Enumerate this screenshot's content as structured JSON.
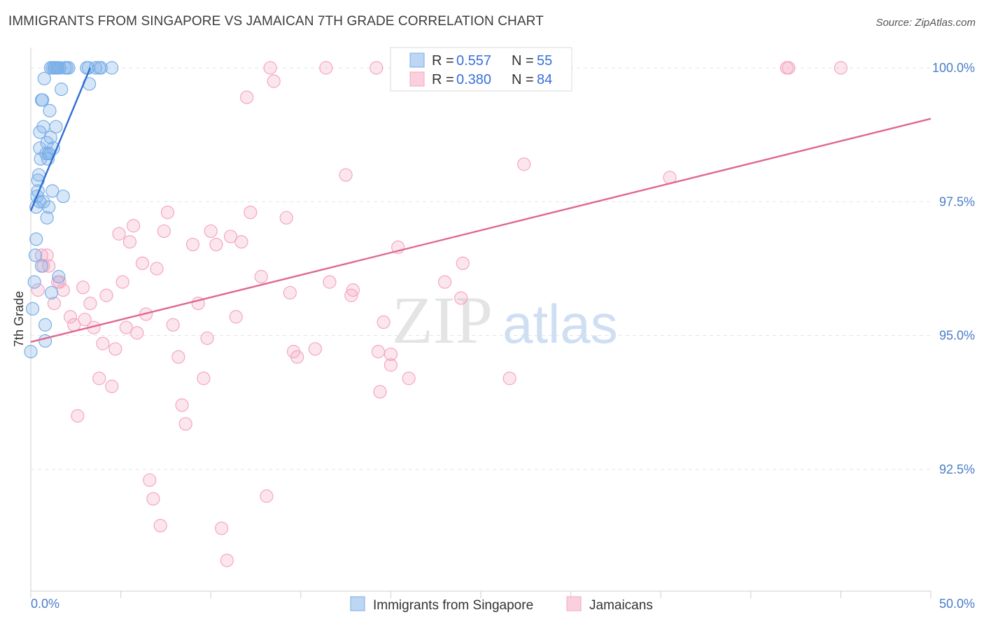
{
  "header": {
    "title": "IMMIGRANTS FROM SINGAPORE VS JAMAICAN 7TH GRADE CORRELATION CHART",
    "source": "Source: ZipAtlas.com"
  },
  "watermark": {
    "zip": "ZIP",
    "atlas": "atlas"
  },
  "colors": {
    "singapore": "#7aaee8",
    "singapore_line": "#2e6fd1",
    "jamaicans": "#f4a6c0",
    "jamaicans_line": "#e06890",
    "axis_text": "#4a7cc9"
  },
  "chart_data": {
    "type": "scatter",
    "title": "IMMIGRANTS FROM SINGAPORE VS JAMAICAN 7TH GRADE CORRELATION CHART",
    "xlabel": "",
    "ylabel": "7th Grade",
    "xlim": [
      0,
      50
    ],
    "ylim": [
      90.0,
      100.25
    ],
    "x_ticks": [
      "0.0%",
      "50.0%"
    ],
    "y_ticks": [
      {
        "value": 100.0,
        "label": "100.0%"
      },
      {
        "value": 97.5,
        "label": "97.5%"
      },
      {
        "value": 95.0,
        "label": "95.0%"
      },
      {
        "value": 92.5,
        "label": "92.5%"
      }
    ],
    "legend": {
      "position": "top-center",
      "entries": [
        {
          "series": "singapore",
          "r_label": "R =",
          "r": "0.557",
          "n_label": "N =",
          "n": "55"
        },
        {
          "series": "jamaicans",
          "r_label": "R =",
          "r": "0.380",
          "n_label": "N =",
          "n": "84"
        }
      ]
    },
    "series": [
      {
        "key": "singapore",
        "name": "Immigrants from Singapore",
        "trend": {
          "x": [
            0.0,
            3.3
          ],
          "y": [
            97.33,
            100.0
          ]
        },
        "points": [
          [
            0.0,
            94.7
          ],
          [
            0.1,
            95.5
          ],
          [
            0.2,
            96.0
          ],
          [
            0.25,
            96.5
          ],
          [
            0.3,
            96.8
          ],
          [
            0.3,
            97.4
          ],
          [
            0.35,
            97.6
          ],
          [
            0.4,
            97.7
          ],
          [
            0.4,
            97.9
          ],
          [
            0.45,
            98.0
          ],
          [
            0.5,
            97.5
          ],
          [
            0.5,
            98.5
          ],
          [
            0.5,
            98.8
          ],
          [
            0.55,
            98.3
          ],
          [
            0.6,
            96.3
          ],
          [
            0.65,
            99.4
          ],
          [
            0.7,
            97.5
          ],
          [
            0.7,
            98.9
          ],
          [
            0.75,
            99.8
          ],
          [
            0.8,
            95.2
          ],
          [
            0.8,
            94.9
          ],
          [
            0.85,
            98.4
          ],
          [
            0.9,
            97.2
          ],
          [
            0.9,
            98.6
          ],
          [
            0.95,
            98.3
          ],
          [
            1.0,
            97.4
          ],
          [
            1.0,
            98.4
          ],
          [
            1.05,
            99.2
          ],
          [
            1.1,
            98.7
          ],
          [
            1.1,
            100.0
          ],
          [
            1.15,
            95.8
          ],
          [
            1.2,
            97.7
          ],
          [
            1.2,
            100.0
          ],
          [
            1.25,
            98.5
          ],
          [
            1.3,
            100.0
          ],
          [
            1.35,
            100.0
          ],
          [
            1.4,
            98.9
          ],
          [
            1.45,
            100.0
          ],
          [
            1.5,
            100.0
          ],
          [
            1.55,
            96.1
          ],
          [
            1.6,
            100.0
          ],
          [
            1.7,
            99.6
          ],
          [
            1.8,
            97.6
          ],
          [
            1.9,
            100.0
          ],
          [
            2.0,
            100.0
          ],
          [
            2.1,
            100.0
          ],
          [
            3.1,
            100.0
          ],
          [
            3.2,
            100.0
          ],
          [
            3.25,
            99.7
          ],
          [
            3.6,
            100.0
          ],
          [
            3.8,
            100.0
          ],
          [
            3.9,
            100.0
          ],
          [
            4.5,
            100.0
          ],
          [
            0.6,
            99.4
          ],
          [
            1.0,
            98.4
          ]
        ]
      },
      {
        "key": "jamaicans",
        "name": "Jamaicans",
        "trend": {
          "x": [
            0.0,
            50.0
          ],
          "y": [
            94.88,
            99.05
          ]
        },
        "points": [
          [
            0.4,
            95.85
          ],
          [
            0.6,
            96.5
          ],
          [
            0.7,
            96.3
          ],
          [
            0.9,
            96.5
          ],
          [
            1.0,
            96.3
          ],
          [
            1.3,
            95.6
          ],
          [
            1.5,
            96.0
          ],
          [
            1.6,
            96.0
          ],
          [
            1.8,
            95.85
          ],
          [
            2.2,
            95.35
          ],
          [
            2.4,
            95.2
          ],
          [
            2.6,
            93.5
          ],
          [
            2.9,
            95.9
          ],
          [
            3.0,
            95.3
          ],
          [
            3.3,
            95.6
          ],
          [
            3.5,
            95.15
          ],
          [
            3.8,
            94.2
          ],
          [
            4.0,
            94.85
          ],
          [
            4.2,
            95.75
          ],
          [
            4.5,
            94.05
          ],
          [
            4.7,
            94.75
          ],
          [
            4.9,
            96.9
          ],
          [
            5.1,
            96.0
          ],
          [
            5.3,
            95.15
          ],
          [
            5.5,
            96.75
          ],
          [
            5.7,
            97.05
          ],
          [
            5.9,
            95.05
          ],
          [
            6.2,
            96.35
          ],
          [
            6.4,
            95.4
          ],
          [
            6.6,
            92.3
          ],
          [
            6.8,
            91.95
          ],
          [
            7.0,
            96.25
          ],
          [
            7.2,
            91.45
          ],
          [
            7.4,
            96.95
          ],
          [
            7.6,
            97.3
          ],
          [
            7.9,
            95.2
          ],
          [
            8.2,
            94.6
          ],
          [
            8.4,
            93.7
          ],
          [
            8.6,
            93.35
          ],
          [
            9.0,
            96.7
          ],
          [
            9.3,
            95.6
          ],
          [
            9.6,
            94.2
          ],
          [
            9.8,
            94.95
          ],
          [
            10.0,
            96.95
          ],
          [
            10.3,
            96.7
          ],
          [
            10.6,
            91.4
          ],
          [
            10.9,
            90.8
          ],
          [
            11.1,
            96.85
          ],
          [
            11.4,
            95.35
          ],
          [
            11.7,
            96.75
          ],
          [
            12.0,
            99.45
          ],
          [
            12.2,
            97.3
          ],
          [
            12.8,
            96.1
          ],
          [
            13.1,
            92.0
          ],
          [
            13.3,
            100.0
          ],
          [
            13.5,
            99.75
          ],
          [
            14.2,
            97.2
          ],
          [
            14.4,
            95.8
          ],
          [
            14.6,
            94.7
          ],
          [
            14.8,
            94.6
          ],
          [
            15.8,
            94.75
          ],
          [
            16.4,
            100.0
          ],
          [
            16.6,
            96.0
          ],
          [
            17.5,
            98.0
          ],
          [
            17.8,
            95.75
          ],
          [
            17.9,
            95.85
          ],
          [
            19.2,
            100.0
          ],
          [
            19.3,
            94.7
          ],
          [
            19.4,
            93.95
          ],
          [
            19.6,
            95.25
          ],
          [
            20.0,
            94.65
          ],
          [
            20.0,
            94.45
          ],
          [
            20.4,
            96.65
          ],
          [
            21.0,
            94.2
          ],
          [
            23.0,
            96.0
          ],
          [
            23.9,
            95.7
          ],
          [
            24.0,
            96.35
          ],
          [
            26.6,
            94.2
          ],
          [
            26.9,
            100.0
          ],
          [
            27.4,
            98.2
          ],
          [
            35.5,
            97.95
          ],
          [
            42.0,
            100.0
          ],
          [
            42.1,
            100.0
          ],
          [
            45.0,
            100.0
          ]
        ]
      }
    ]
  }
}
